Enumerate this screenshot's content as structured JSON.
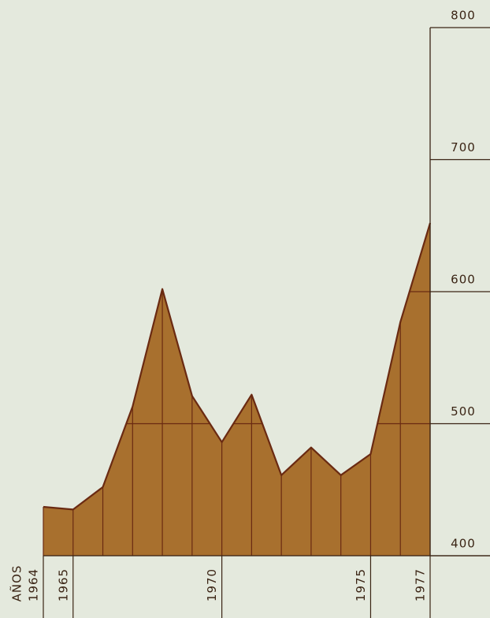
{
  "chart_data": {
    "type": "area",
    "x_label": "AÑOS",
    "categories": [
      "1964",
      "1965",
      null,
      null,
      null,
      null,
      "1970",
      null,
      null,
      null,
      null,
      "1975",
      null,
      "1977"
    ],
    "values": [
      437,
      435,
      452,
      513,
      602,
      521,
      486,
      522,
      461,
      482,
      461,
      477,
      577,
      652
    ],
    "color": "#a8702e",
    "line_color": "#6a2a12",
    "ylim": [
      400,
      800
    ],
    "yticks": [
      400,
      500,
      600,
      700,
      800
    ],
    "grid": true
  }
}
